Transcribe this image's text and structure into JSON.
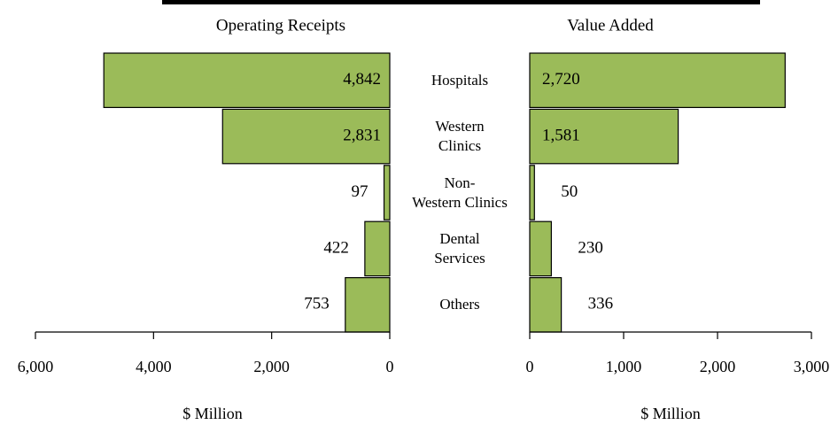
{
  "chart_data": [
    {
      "type": "bar",
      "orientation": "horizontal",
      "title": "Operating Receipts",
      "xlabel": "$ Million",
      "categories": [
        "Hospitals",
        "Western\nClinics",
        "Non-\nWestern Clinics",
        "Dental\nServices",
        "Others"
      ],
      "values": [
        4842,
        2831,
        97,
        422,
        753
      ],
      "value_labels": [
        "4,842",
        "2,831",
        "97",
        "422",
        "753"
      ],
      "xlim": [
        6000,
        0
      ],
      "xticks": [
        {
          "value": 6000,
          "label": "6,000"
        },
        {
          "value": 4000,
          "label": "4,000"
        },
        {
          "value": 2000,
          "label": "2,000"
        },
        0
      ],
      "color": "#9bbb59"
    },
    {
      "type": "bar",
      "orientation": "horizontal",
      "title": "Value Added",
      "xlabel": "$ Million",
      "values": [
        2720,
        1581,
        50,
        230,
        336
      ],
      "value_labels": [
        "2,720",
        "1,581",
        "50",
        "230",
        "336"
      ],
      "xlim": [
        0,
        3000
      ],
      "xticks": [
        0,
        {
          "value": 1000,
          "label": "1,000"
        },
        {
          "value": 2000,
          "label": "2,000"
        },
        {
          "value": 3000,
          "label": "3,000"
        }
      ],
      "color": "#9bbb59"
    }
  ]
}
